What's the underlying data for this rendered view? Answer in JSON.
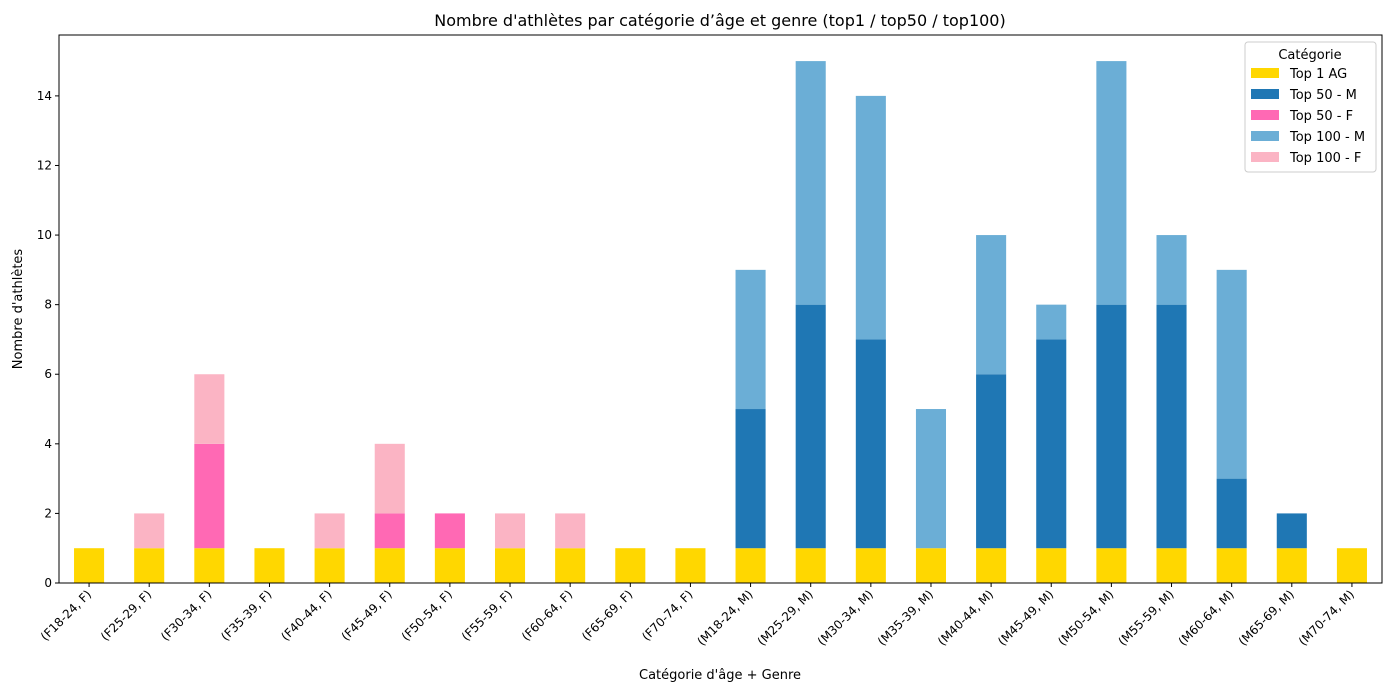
{
  "chart_data": {
    "type": "bar",
    "stacked": true,
    "title": "Nombre d'athlètes par catégorie d’âge et genre (top1 / top50 / top100)",
    "xlabel": "Catégorie d'âge + Genre",
    "ylabel": "Nombre d'athlètes",
    "ylim": [
      0,
      15.75
    ],
    "yticks": [
      0,
      2,
      4,
      6,
      8,
      10,
      12,
      14
    ],
    "grid": false,
    "legend_title": "Catégorie",
    "legend_position": "top-right",
    "categories": [
      "(F18-24, F)",
      "(F25-29, F)",
      "(F30-34, F)",
      "(F35-39, F)",
      "(F40-44, F)",
      "(F45-49, F)",
      "(F50-54, F)",
      "(F55-59, F)",
      "(F60-64, F)",
      "(F65-69, F)",
      "(F70-74, F)",
      "(M18-24, M)",
      "(M25-29, M)",
      "(M30-34, M)",
      "(M35-39, M)",
      "(M40-44, M)",
      "(M45-49, M)",
      "(M50-54, M)",
      "(M55-59, M)",
      "(M60-64, M)",
      "(M65-69, M)",
      "(M70-74, M)"
    ],
    "series": [
      {
        "name": "Top 1 AG",
        "color": "#FFD700",
        "values": [
          1,
          1,
          1,
          1,
          1,
          1,
          1,
          1,
          1,
          1,
          1,
          1,
          1,
          1,
          1,
          1,
          1,
          1,
          1,
          1,
          1,
          1
        ]
      },
      {
        "name": "Top 50 - M",
        "color": "#1F77B4",
        "values": [
          0,
          0,
          0,
          0,
          0,
          0,
          0,
          0,
          0,
          0,
          0,
          4,
          7,
          6,
          0,
          5,
          6,
          7,
          7,
          2,
          1,
          0
        ]
      },
      {
        "name": "Top 50 - F",
        "color": "#FF69B4",
        "values": [
          0,
          0,
          3,
          0,
          0,
          1,
          1,
          0,
          0,
          0,
          0,
          0,
          0,
          0,
          0,
          0,
          0,
          0,
          0,
          0,
          0,
          0
        ]
      },
      {
        "name": "Top 100 - M",
        "color": "#6BAED6",
        "values": [
          0,
          0,
          0,
          0,
          0,
          0,
          0,
          0,
          0,
          0,
          0,
          4,
          7,
          7,
          4,
          4,
          1,
          7,
          2,
          6,
          0,
          0
        ]
      },
      {
        "name": "Top 100 - F",
        "color": "#FBB4C4",
        "values": [
          0,
          1,
          2,
          0,
          1,
          2,
          0,
          1,
          1,
          0,
          0,
          0,
          0,
          0,
          0,
          0,
          0,
          0,
          0,
          0,
          0,
          0
        ]
      }
    ]
  }
}
